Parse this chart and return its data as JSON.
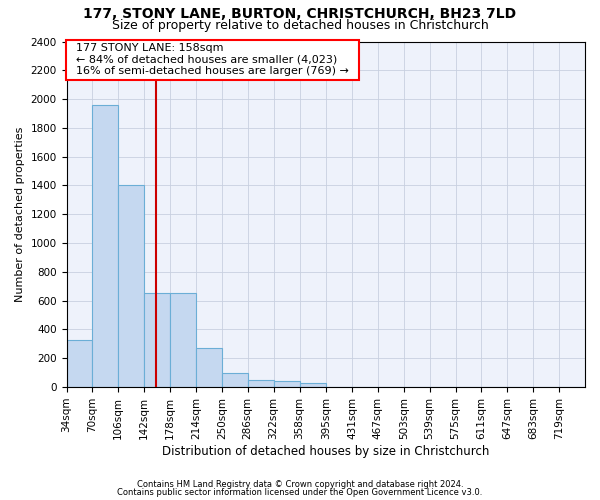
{
  "title1": "177, STONY LANE, BURTON, CHRISTCHURCH, BH23 7LD",
  "title2": "Size of property relative to detached houses in Christchurch",
  "xlabel": "Distribution of detached houses by size in Christchurch",
  "ylabel": "Number of detached properties",
  "footnote1": "Contains HM Land Registry data © Crown copyright and database right 2024.",
  "footnote2": "Contains public sector information licensed under the Open Government Licence v3.0.",
  "annotation_line1": "177 STONY LANE: 158sqm",
  "annotation_line2": "← 84% of detached houses are smaller (4,023)",
  "annotation_line3": "16% of semi-detached houses are larger (769) →",
  "bar_edges": [
    34,
    70,
    106,
    142,
    178,
    214,
    250,
    286,
    322,
    358,
    395,
    431,
    467,
    503,
    539,
    575,
    611,
    647,
    683,
    719,
    755
  ],
  "bar_heights": [
    325,
    1960,
    1400,
    650,
    650,
    270,
    100,
    48,
    40,
    25,
    0,
    0,
    0,
    0,
    0,
    0,
    0,
    0,
    0,
    0
  ],
  "bar_color": "#c5d8f0",
  "bar_edge_color": "#6baed6",
  "vline_color": "#cc0000",
  "vline_x": 158,
  "ylim": [
    0,
    2400
  ],
  "yticks": [
    0,
    200,
    400,
    600,
    800,
    1000,
    1200,
    1400,
    1600,
    1800,
    2000,
    2200,
    2400
  ],
  "background_color": "#eef2fb",
  "grid_color": "#c8d0e0",
  "title1_fontsize": 10,
  "title2_fontsize": 9,
  "xlabel_fontsize": 8.5,
  "ylabel_fontsize": 8,
  "tick_fontsize": 7.5,
  "annotation_fontsize": 8,
  "footnote_fontsize": 6
}
